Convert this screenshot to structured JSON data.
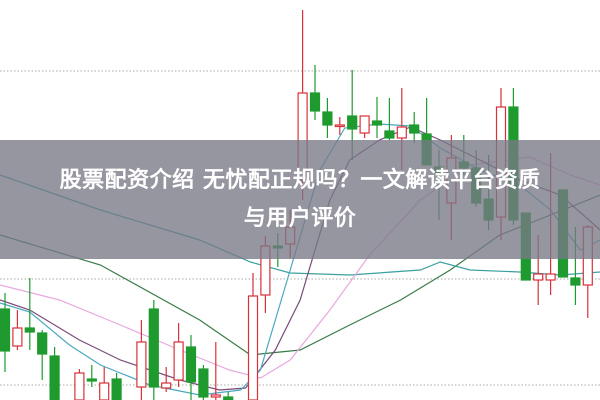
{
  "title": {
    "line1": "股票配资介绍 无忧配正规吗？一文解读平台资质",
    "line2": "与用户评价"
  },
  "chart_data": {
    "type": "candlestick",
    "grid": {
      "horizontal_dotted_levels": [
        329,
        121,
        15
      ]
    },
    "colors": {
      "up": "#d9303a",
      "down": "#1e9a2e",
      "ma_long": "#3a7a48",
      "ma_mid": "#3aa0a0",
      "ma_pink": "#e8a8e0",
      "ma_purple": "#7a4a7a",
      "ma_cyan": "#4aa8c0"
    },
    "candles": [
      {
        "i": 0,
        "o": 91,
        "c": 49,
        "h": 107,
        "l": 28
      },
      {
        "i": 1,
        "o": 54,
        "c": 72,
        "h": 90,
        "l": 50
      },
      {
        "i": 2,
        "o": 72,
        "c": 68,
        "h": 122,
        "l": 50
      },
      {
        "i": 3,
        "o": 67,
        "c": 46,
        "h": 70,
        "l": 20
      },
      {
        "i": 4,
        "o": 44,
        "c": 0,
        "h": 53,
        "l": 0
      },
      {
        "i": 6,
        "o": 0,
        "c": 27,
        "h": 31,
        "l": 0
      },
      {
        "i": 7,
        "o": 21,
        "c": 19,
        "h": 35,
        "l": 13
      },
      {
        "i": 8,
        "o": 0,
        "c": 17,
        "h": 33,
        "l": 0
      },
      {
        "i": 9,
        "o": 21,
        "c": 0,
        "h": 27,
        "l": 0
      },
      {
        "i": 11,
        "o": 13,
        "c": 58,
        "h": 80,
        "l": 0
      },
      {
        "i": 12,
        "o": 91,
        "c": 13,
        "h": 100,
        "l": 0
      },
      {
        "i": 13,
        "o": 12,
        "c": 17,
        "h": 33,
        "l": 8
      },
      {
        "i": 14,
        "o": 20,
        "c": 58,
        "h": 77,
        "l": 13
      },
      {
        "i": 15,
        "o": 53,
        "c": 18,
        "h": 65,
        "l": 0
      },
      {
        "i": 16,
        "o": 31,
        "c": 3,
        "h": 35,
        "l": 0
      },
      {
        "i": 17,
        "o": 3,
        "c": 5,
        "h": 58,
        "l": 0
      },
      {
        "i": 18,
        "o": 3,
        "c": 0,
        "h": 8,
        "l": 0
      },
      {
        "i": 20,
        "o": 0,
        "c": 104,
        "h": 127,
        "l": 0
      },
      {
        "i": 21,
        "o": 105,
        "c": 154,
        "h": 164,
        "l": 87
      },
      {
        "i": 22,
        "o": 154,
        "c": 152,
        "h": 167,
        "l": 133
      },
      {
        "i": 23,
        "o": 156,
        "c": 173,
        "h": 190,
        "l": 142
      },
      {
        "i": 24,
        "o": 220,
        "c": 307,
        "h": 390,
        "l": 200
      },
      {
        "i": 25,
        "o": 307,
        "c": 289,
        "h": 335,
        "l": 280
      },
      {
        "i": 26,
        "o": 288,
        "c": 275,
        "h": 302,
        "l": 262
      },
      {
        "i": 27,
        "o": 274,
        "c": 275,
        "h": 283,
        "l": 265
      },
      {
        "i": 28,
        "o": 284,
        "c": 271,
        "h": 330,
        "l": 240
      },
      {
        "i": 29,
        "o": 267,
        "c": 284,
        "h": 284,
        "l": 262
      },
      {
        "i": 30,
        "o": 279,
        "c": 275,
        "h": 303,
        "l": 262
      },
      {
        "i": 31,
        "o": 269,
        "c": 262,
        "h": 302,
        "l": 260
      },
      {
        "i": 32,
        "o": 262,
        "c": 273,
        "h": 312,
        "l": 230
      },
      {
        "i": 33,
        "o": 275,
        "c": 267,
        "h": 288,
        "l": 257
      },
      {
        "i": 34,
        "o": 266,
        "c": 235,
        "h": 302,
        "l": 235
      },
      {
        "i": 35,
        "o": 233,
        "c": 227,
        "h": 250,
        "l": 180
      },
      {
        "i": 36,
        "o": 197,
        "c": 242,
        "h": 265,
        "l": 160
      },
      {
        "i": 37,
        "o": 238,
        "c": 232,
        "h": 265,
        "l": 225
      },
      {
        "i": 38,
        "o": 232,
        "c": 197,
        "h": 250,
        "l": 193
      },
      {
        "i": 39,
        "o": 201,
        "c": 180,
        "h": 245,
        "l": 170
      },
      {
        "i": 40,
        "o": 183,
        "c": 293,
        "h": 312,
        "l": 160
      },
      {
        "i": 41,
        "o": 293,
        "c": 180,
        "h": 312,
        "l": 175
      },
      {
        "i": 42,
        "o": 187,
        "c": 120,
        "h": 187,
        "l": 120
      },
      {
        "i": 43,
        "o": 120,
        "c": 126,
        "h": 165,
        "l": 95
      },
      {
        "i": 44,
        "o": 120,
        "c": 126,
        "h": 247,
        "l": 105
      },
      {
        "i": 45,
        "o": 210,
        "c": 123,
        "h": 210,
        "l": 123
      },
      {
        "i": 46,
        "o": 122,
        "c": 115,
        "h": 173,
        "l": 95
      },
      {
        "i": 47,
        "o": 115,
        "c": 173,
        "h": 175,
        "l": 82
      }
    ],
    "moving_averages": [
      {
        "key": "ma_long",
        "points": [
          [
            -0.4,
            165
          ],
          [
            7.7,
            135
          ],
          [
            15.7,
            80
          ],
          [
            19.8,
            45
          ],
          [
            23.8,
            50
          ],
          [
            27.8,
            75
          ],
          [
            31.9,
            100
          ],
          [
            35.9,
            130
          ],
          [
            39.9,
            165
          ],
          [
            44,
            185
          ],
          [
            48,
            205
          ]
        ]
      },
      {
        "key": "ma_mid",
        "points": [
          [
            -0.4,
            225
          ],
          [
            7.7,
            190
          ],
          [
            15.7,
            160
          ],
          [
            19.8,
            138
          ],
          [
            23,
            127
          ],
          [
            27.8,
            125
          ],
          [
            33.5,
            130
          ],
          [
            35.1,
            138
          ],
          [
            37.5,
            130
          ],
          [
            41.5,
            128
          ],
          [
            44.8,
            125
          ],
          [
            48,
            128
          ]
        ]
      },
      {
        "key": "ma_pink",
        "points": [
          [
            -0.4,
            115
          ],
          [
            4.4,
            100
          ],
          [
            9.3,
            75
          ],
          [
            14.1,
            50
          ],
          [
            18.1,
            30
          ],
          [
            20.6,
            22
          ],
          [
            23,
            40
          ],
          [
            26.2,
            90
          ],
          [
            29.4,
            145
          ],
          [
            33.5,
            200
          ],
          [
            37.5,
            235
          ],
          [
            42.3,
            243
          ],
          [
            45.6,
            225
          ],
          [
            48,
            215
          ]
        ]
      },
      {
        "key": "ma_purple",
        "points": [
          [
            -0.4,
            100
          ],
          [
            2,
            90
          ],
          [
            6,
            60
          ],
          [
            9.3,
            40
          ],
          [
            14.1,
            20
          ],
          [
            17.3,
            10
          ],
          [
            19.4,
            12
          ],
          [
            21.8,
            50
          ],
          [
            23.8,
            100
          ],
          [
            26.2,
            200
          ],
          [
            27.8,
            240
          ],
          [
            30.2,
            260
          ],
          [
            32.7,
            273
          ],
          [
            35.1,
            260
          ],
          [
            38.3,
            240
          ],
          [
            41.5,
            220
          ],
          [
            44.8,
            205
          ],
          [
            48,
            170
          ]
        ]
      },
      {
        "key": "ma_cyan",
        "points": [
          [
            -0.4,
            97
          ],
          [
            2,
            88
          ],
          [
            5.2,
            55
          ],
          [
            7.7,
            35
          ],
          [
            11.7,
            15
          ],
          [
            15.7,
            5
          ],
          [
            19,
            10
          ],
          [
            20.6,
            30
          ],
          [
            23,
            130
          ],
          [
            25.4,
            230
          ],
          [
            27.4,
            272
          ],
          [
            30.2,
            276
          ],
          [
            32.7,
            274
          ],
          [
            35.1,
            252
          ],
          [
            38.3,
            230
          ],
          [
            41.5,
            215
          ],
          [
            44,
            190
          ],
          [
            46.4,
            150
          ],
          [
            48,
            160
          ]
        ]
      }
    ]
  }
}
